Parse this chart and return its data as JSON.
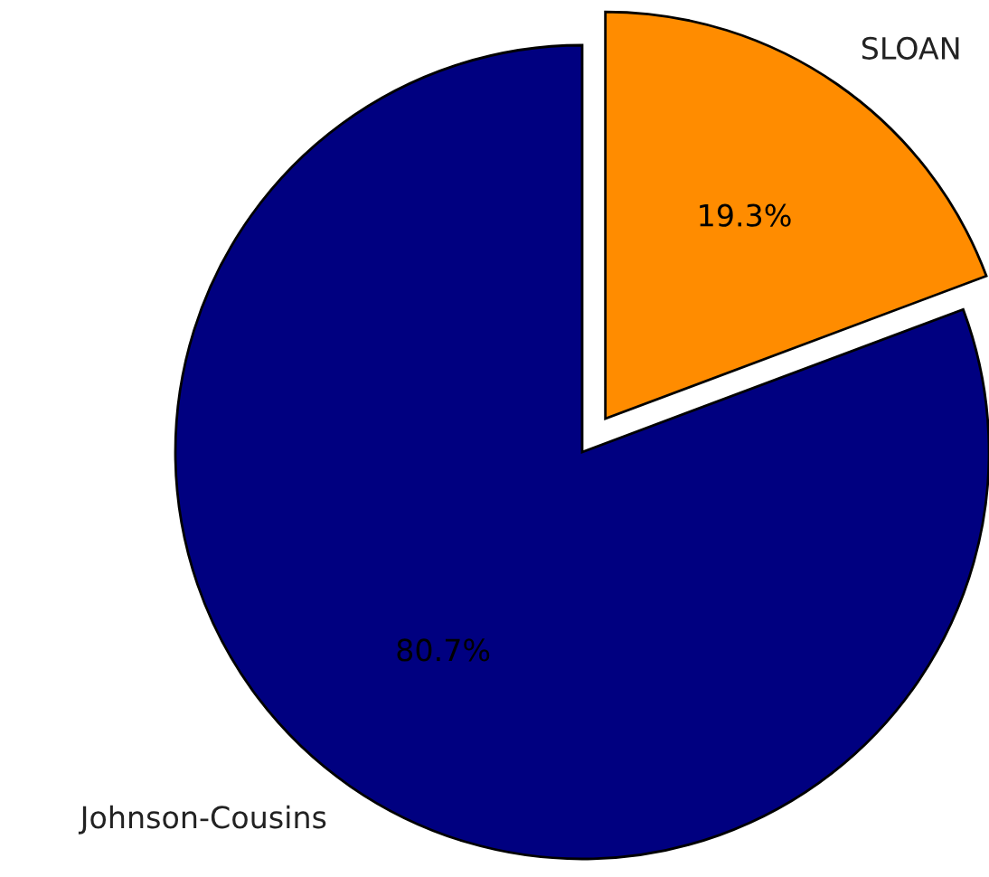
{
  "chart_data": {
    "type": "pie",
    "categories": [
      "Johnson-Cousins",
      "SLOAN"
    ],
    "values": [
      80.7,
      19.3
    ],
    "colors": [
      "#000080",
      "#ff8c00"
    ],
    "value_labels": [
      "80.7%",
      "19.3%"
    ]
  }
}
